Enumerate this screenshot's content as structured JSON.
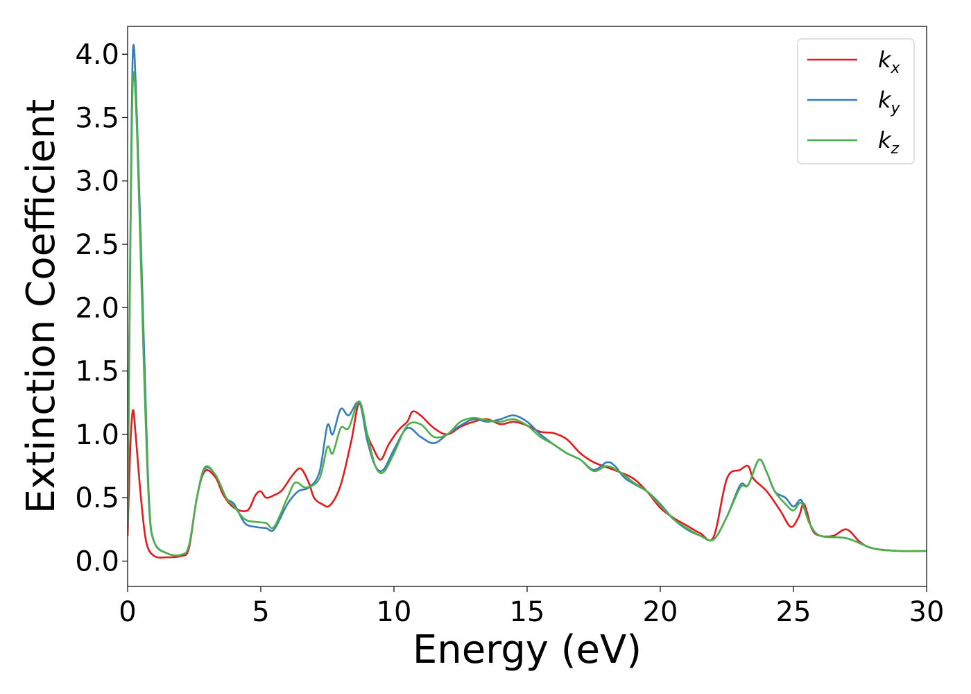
{
  "chart_data": {
    "type": "line",
    "xlabel": "Energy (eV)",
    "ylabel": "Extinction Coefficient",
    "xlim": [
      0,
      30
    ],
    "ylim": [
      -0.2,
      4.22
    ],
    "xticks": [
      0,
      5,
      10,
      15,
      20,
      25,
      30
    ],
    "xtick_labels": [
      "0",
      "5",
      "10",
      "15",
      "20",
      "25",
      "30"
    ],
    "yticks": [
      0.0,
      0.5,
      1.0,
      1.5,
      2.0,
      2.5,
      3.0,
      3.5,
      4.0
    ],
    "ytick_labels": [
      "0.0",
      "0.5",
      "1.0",
      "1.5",
      "2.0",
      "2.5",
      "3.0",
      "3.5",
      "4.0"
    ],
    "grid": false,
    "legend_position": "top-right",
    "series": [
      {
        "name": "k",
        "sub": "x",
        "color": "#e41a1c",
        "points": [
          [
            0,
            0.2
          ],
          [
            0.1,
            0.9
          ],
          [
            0.2,
            1.19
          ],
          [
            0.3,
            1.0
          ],
          [
            0.5,
            0.5
          ],
          [
            0.7,
            0.15
          ],
          [
            1.0,
            0.04
          ],
          [
            1.5,
            0.03
          ],
          [
            2.0,
            0.04
          ],
          [
            2.3,
            0.1
          ],
          [
            2.6,
            0.5
          ],
          [
            2.9,
            0.71
          ],
          [
            3.3,
            0.66
          ],
          [
            3.6,
            0.52
          ],
          [
            4.0,
            0.42
          ],
          [
            4.5,
            0.4
          ],
          [
            4.8,
            0.52
          ],
          [
            5.0,
            0.55
          ],
          [
            5.2,
            0.5
          ],
          [
            5.5,
            0.52
          ],
          [
            5.8,
            0.56
          ],
          [
            6.2,
            0.68
          ],
          [
            6.5,
            0.73
          ],
          [
            6.8,
            0.62
          ],
          [
            7.0,
            0.5
          ],
          [
            7.3,
            0.45
          ],
          [
            7.6,
            0.44
          ],
          [
            8.0,
            0.6
          ],
          [
            8.4,
            0.95
          ],
          [
            8.7,
            1.25
          ],
          [
            9.0,
            1.0
          ],
          [
            9.2,
            0.9
          ],
          [
            9.5,
            0.8
          ],
          [
            9.8,
            0.92
          ],
          [
            10.2,
            1.04
          ],
          [
            10.5,
            1.1
          ],
          [
            10.7,
            1.18
          ],
          [
            11.0,
            1.15
          ],
          [
            11.5,
            1.05
          ],
          [
            12.0,
            1.0
          ],
          [
            12.5,
            1.06
          ],
          [
            13.0,
            1.1
          ],
          [
            13.5,
            1.12
          ],
          [
            14.0,
            1.08
          ],
          [
            14.5,
            1.1
          ],
          [
            15.0,
            1.07
          ],
          [
            15.5,
            1.02
          ],
          [
            16.0,
            1.01
          ],
          [
            16.5,
            0.96
          ],
          [
            17.0,
            0.85
          ],
          [
            17.5,
            0.78
          ],
          [
            18.0,
            0.74
          ],
          [
            18.5,
            0.7
          ],
          [
            19.0,
            0.65
          ],
          [
            19.5,
            0.55
          ],
          [
            20.0,
            0.42
          ],
          [
            20.5,
            0.34
          ],
          [
            21.0,
            0.28
          ],
          [
            21.5,
            0.22
          ],
          [
            22.0,
            0.19
          ],
          [
            22.5,
            0.65
          ],
          [
            23.0,
            0.72
          ],
          [
            23.3,
            0.75
          ],
          [
            23.5,
            0.65
          ],
          [
            24.0,
            0.55
          ],
          [
            24.5,
            0.4
          ],
          [
            24.9,
            0.27
          ],
          [
            25.2,
            0.35
          ],
          [
            25.4,
            0.45
          ],
          [
            25.7,
            0.25
          ],
          [
            26.0,
            0.2
          ],
          [
            26.5,
            0.2
          ],
          [
            27.0,
            0.25
          ],
          [
            27.5,
            0.15
          ],
          [
            28.0,
            0.1
          ],
          [
            29.0,
            0.08
          ],
          [
            30.0,
            0.08
          ]
        ]
      },
      {
        "name": "k",
        "sub": "y",
        "color": "#377eb8",
        "points": [
          [
            0,
            0.3
          ],
          [
            0.1,
            2.5
          ],
          [
            0.2,
            4.03
          ],
          [
            0.35,
            3.5
          ],
          [
            0.6,
            1.8
          ],
          [
            0.8,
            0.5
          ],
          [
            1.0,
            0.15
          ],
          [
            1.5,
            0.06
          ],
          [
            2.0,
            0.05
          ],
          [
            2.3,
            0.12
          ],
          [
            2.6,
            0.5
          ],
          [
            2.9,
            0.73
          ],
          [
            3.3,
            0.68
          ],
          [
            3.7,
            0.5
          ],
          [
            4.0,
            0.45
          ],
          [
            4.4,
            0.3
          ],
          [
            4.8,
            0.27
          ],
          [
            5.2,
            0.26
          ],
          [
            5.5,
            0.25
          ],
          [
            6.0,
            0.45
          ],
          [
            6.4,
            0.55
          ],
          [
            6.8,
            0.58
          ],
          [
            7.2,
            0.7
          ],
          [
            7.5,
            1.07
          ],
          [
            7.7,
            1.0
          ],
          [
            8.0,
            1.2
          ],
          [
            8.3,
            1.15
          ],
          [
            8.7,
            1.25
          ],
          [
            9.0,
            0.95
          ],
          [
            9.3,
            0.75
          ],
          [
            9.6,
            0.72
          ],
          [
            10.0,
            0.88
          ],
          [
            10.5,
            1.05
          ],
          [
            11.0,
            0.98
          ],
          [
            11.5,
            0.93
          ],
          [
            12.0,
            1.0
          ],
          [
            12.5,
            1.07
          ],
          [
            13.0,
            1.12
          ],
          [
            13.5,
            1.1
          ],
          [
            14.0,
            1.12
          ],
          [
            14.5,
            1.15
          ],
          [
            15.0,
            1.1
          ],
          [
            15.5,
            1.0
          ],
          [
            16.0,
            0.92
          ],
          [
            16.5,
            0.85
          ],
          [
            17.0,
            0.8
          ],
          [
            17.5,
            0.72
          ],
          [
            18.0,
            0.78
          ],
          [
            18.3,
            0.75
          ],
          [
            18.7,
            0.65
          ],
          [
            19.5,
            0.55
          ],
          [
            20.0,
            0.45
          ],
          [
            20.5,
            0.33
          ],
          [
            21.0,
            0.25
          ],
          [
            21.5,
            0.2
          ],
          [
            22.0,
            0.17
          ],
          [
            22.5,
            0.35
          ],
          [
            23.0,
            0.6
          ],
          [
            23.3,
            0.6
          ],
          [
            23.7,
            0.8
          ],
          [
            24.0,
            0.7
          ],
          [
            24.3,
            0.55
          ],
          [
            24.7,
            0.5
          ],
          [
            25.0,
            0.43
          ],
          [
            25.3,
            0.48
          ],
          [
            25.6,
            0.3
          ],
          [
            26.0,
            0.2
          ],
          [
            27.0,
            0.18
          ],
          [
            28.0,
            0.1
          ],
          [
            29.0,
            0.08
          ],
          [
            30.0,
            0.08
          ]
        ]
      },
      {
        "name": "k",
        "sub": "z",
        "color": "#4daf4a",
        "points": [
          [
            0,
            0.3
          ],
          [
            0.1,
            2.4
          ],
          [
            0.2,
            3.8
          ],
          [
            0.35,
            3.4
          ],
          [
            0.6,
            1.6
          ],
          [
            0.8,
            0.45
          ],
          [
            1.0,
            0.15
          ],
          [
            1.5,
            0.06
          ],
          [
            2.0,
            0.05
          ],
          [
            2.3,
            0.12
          ],
          [
            2.6,
            0.5
          ],
          [
            2.9,
            0.74
          ],
          [
            3.3,
            0.68
          ],
          [
            3.7,
            0.5
          ],
          [
            4.0,
            0.43
          ],
          [
            4.4,
            0.33
          ],
          [
            4.8,
            0.31
          ],
          [
            5.2,
            0.3
          ],
          [
            5.5,
            0.27
          ],
          [
            6.0,
            0.5
          ],
          [
            6.3,
            0.62
          ],
          [
            6.7,
            0.58
          ],
          [
            7.2,
            0.65
          ],
          [
            7.5,
            0.9
          ],
          [
            7.7,
            0.85
          ],
          [
            8.0,
            1.05
          ],
          [
            8.3,
            1.05
          ],
          [
            8.7,
            1.26
          ],
          [
            9.0,
            1.0
          ],
          [
            9.3,
            0.75
          ],
          [
            9.6,
            0.7
          ],
          [
            10.0,
            0.85
          ],
          [
            10.5,
            1.07
          ],
          [
            11.0,
            1.08
          ],
          [
            11.5,
            0.98
          ],
          [
            12.0,
            1.0
          ],
          [
            12.5,
            1.1
          ],
          [
            13.0,
            1.13
          ],
          [
            13.5,
            1.11
          ],
          [
            14.0,
            1.1
          ],
          [
            14.5,
            1.12
          ],
          [
            15.0,
            1.07
          ],
          [
            15.5,
            0.98
          ],
          [
            16.0,
            0.92
          ],
          [
            16.5,
            0.85
          ],
          [
            17.0,
            0.8
          ],
          [
            17.5,
            0.71
          ],
          [
            18.0,
            0.75
          ],
          [
            18.5,
            0.7
          ],
          [
            19.0,
            0.62
          ],
          [
            19.5,
            0.55
          ],
          [
            20.0,
            0.44
          ],
          [
            20.5,
            0.33
          ],
          [
            21.0,
            0.26
          ],
          [
            21.5,
            0.2
          ],
          [
            22.0,
            0.17
          ],
          [
            22.5,
            0.35
          ],
          [
            23.0,
            0.58
          ],
          [
            23.3,
            0.6
          ],
          [
            23.7,
            0.8
          ],
          [
            24.0,
            0.7
          ],
          [
            24.3,
            0.55
          ],
          [
            24.7,
            0.45
          ],
          [
            25.0,
            0.4
          ],
          [
            25.3,
            0.46
          ],
          [
            25.6,
            0.3
          ],
          [
            26.0,
            0.2
          ],
          [
            27.0,
            0.18
          ],
          [
            28.0,
            0.1
          ],
          [
            29.0,
            0.08
          ],
          [
            30.0,
            0.08
          ]
        ]
      }
    ]
  }
}
